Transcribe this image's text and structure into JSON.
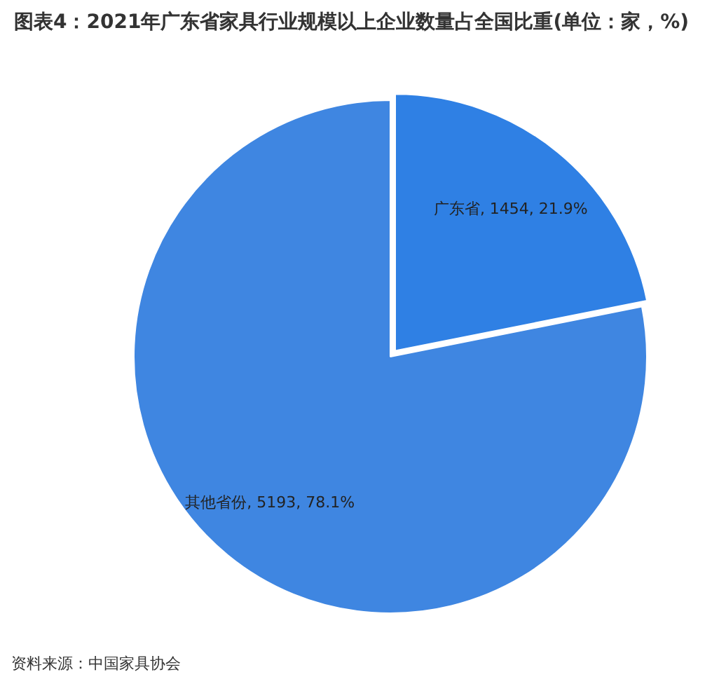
{
  "chart_data": {
    "type": "pie",
    "title": "图表4：2021年广东省家具行业规模以上企业数量占全国比重(单位：家，%)",
    "categories": [
      "广东省",
      "其他省份"
    ],
    "values": [
      1454,
      5193
    ],
    "colors": [
      "#2f80e4",
      "#3f86e1"
    ],
    "value_labels": [
      "1454, 21.9%",
      "5193, 78.1%"
    ],
    "legend": false,
    "annotations": [
      "资料来源：中国家具协会"
    ]
  }
}
